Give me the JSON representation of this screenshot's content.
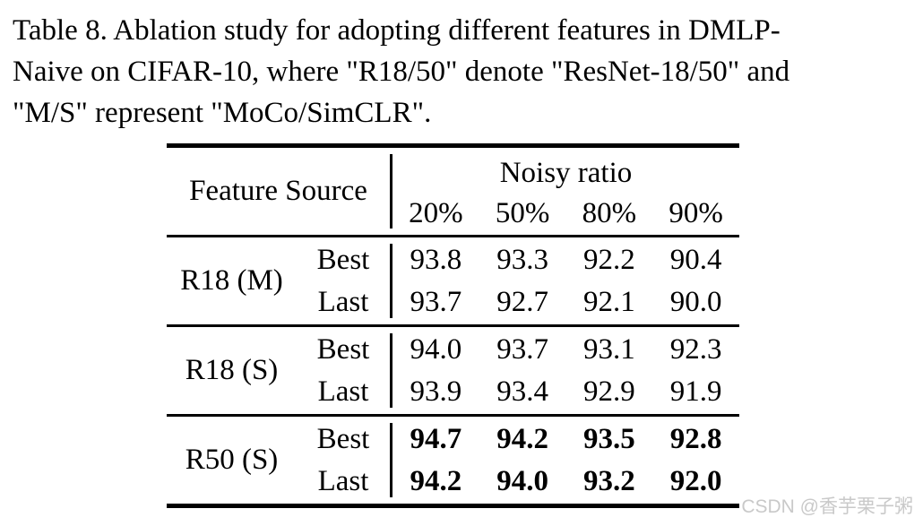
{
  "caption": {
    "lines": [
      "Table 8. Ablation study for adopting different features in DMLP-",
      "Naive on CIFAR-10, where \"R18/50\" denote \"ResNet-18/50\" and",
      "\"M/S\" represent \"MoCo/SimCLR\"."
    ]
  },
  "table": {
    "feature_source_label": "Feature Source",
    "noisy_ratio_label": "Noisy ratio",
    "noise_levels": [
      "20%",
      "50%",
      "80%",
      "90%"
    ],
    "blocks": [
      {
        "feature": "R18 (M)",
        "rows": [
          {
            "label": "Best",
            "bold": false,
            "values": [
              "93.8",
              "93.3",
              "92.2",
              "90.4"
            ]
          },
          {
            "label": "Last",
            "bold": false,
            "values": [
              "93.7",
              "92.7",
              "92.1",
              "90.0"
            ]
          }
        ]
      },
      {
        "feature": "R18 (S)",
        "rows": [
          {
            "label": "Best",
            "bold": false,
            "values": [
              "94.0",
              "93.7",
              "93.1",
              "92.3"
            ]
          },
          {
            "label": "Last",
            "bold": false,
            "values": [
              "93.9",
              "93.4",
              "92.9",
              "91.9"
            ]
          }
        ]
      },
      {
        "feature": "R50 (S)",
        "rows": [
          {
            "label": "Best",
            "bold": true,
            "values": [
              "94.7",
              "94.2",
              "93.5",
              "92.8"
            ]
          },
          {
            "label": "Last",
            "bold": true,
            "values": [
              "94.2",
              "94.0",
              "93.2",
              "92.0"
            ]
          }
        ]
      }
    ]
  },
  "watermark": {
    "text": "CSDN @香芋栗子粥"
  },
  "colors": {
    "text": "#000000",
    "background": "#ffffff",
    "rule": "#000000",
    "watermark": "#c9c9c9"
  }
}
